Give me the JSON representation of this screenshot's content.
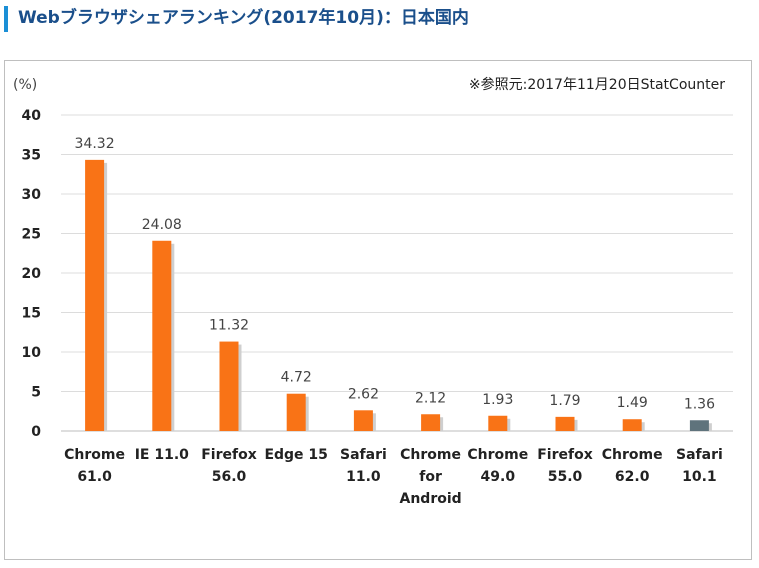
{
  "header": {
    "title": "Webブラウザシェアランキング(2017年10月)：日本国内"
  },
  "chart_data": {
    "type": "bar",
    "title": "",
    "ylabel": "(%)",
    "source": "※参照元:2017年11月20日StatCounter",
    "ylim": [
      0,
      40
    ],
    "yticks": [
      0,
      5,
      10,
      15,
      20,
      25,
      30,
      35,
      40
    ],
    "grid": true,
    "categories": [
      [
        "Chrome",
        "61.0"
      ],
      [
        "IE 11.0"
      ],
      [
        "Firefox",
        "56.0"
      ],
      [
        "Edge 15"
      ],
      [
        "Safari",
        "11.0"
      ],
      [
        "Chrome",
        "for",
        "Android"
      ],
      [
        "Chrome",
        "49.0"
      ],
      [
        "Firefox",
        "55.0"
      ],
      [
        "Chrome",
        "62.0"
      ],
      [
        "Safari",
        "10.1"
      ]
    ],
    "values": [
      34.32,
      24.08,
      11.32,
      4.72,
      2.62,
      2.12,
      1.93,
      1.79,
      1.49,
      1.36
    ],
    "value_labels": [
      "34.32",
      "24.08",
      "11.32",
      "4.72",
      "2.62",
      "2.12",
      "1.93",
      "1.79",
      "1.49",
      "1.36"
    ],
    "colors": [
      "#f97316",
      "#f97316",
      "#f97316",
      "#f97316",
      "#f97316",
      "#f97316",
      "#f97316",
      "#f97316",
      "#f97316",
      "#5f737c"
    ]
  }
}
